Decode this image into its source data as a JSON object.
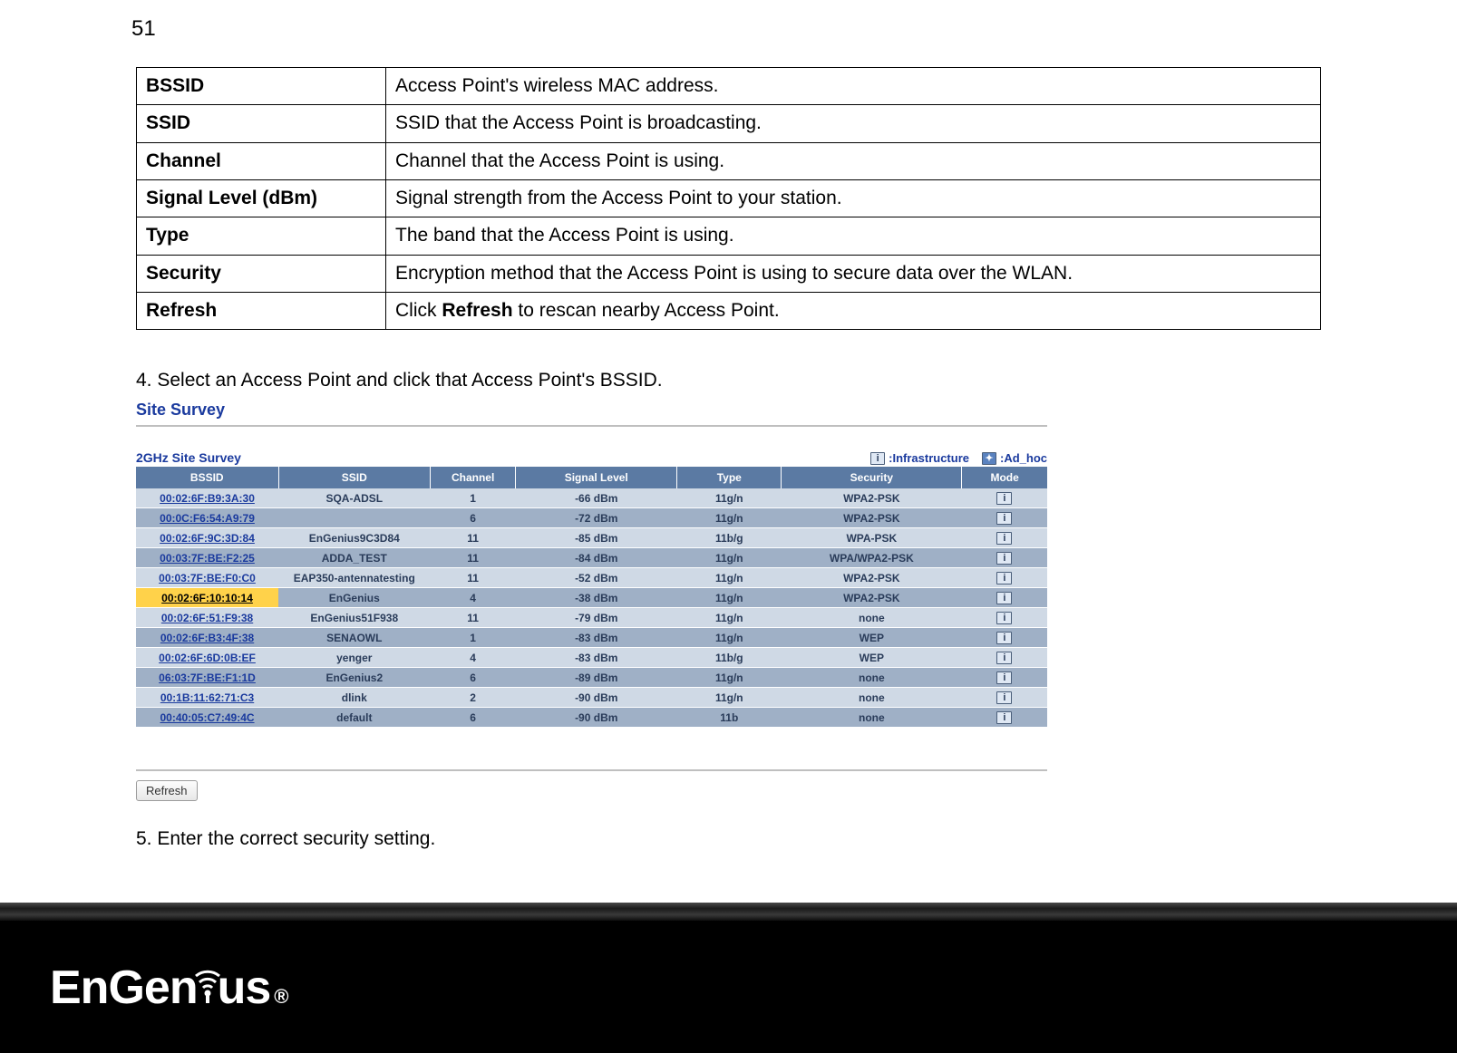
{
  "page_number": "51",
  "definitions": [
    {
      "term": "BSSID",
      "desc": "Access Point's wireless MAC address."
    },
    {
      "term": "SSID",
      "desc": "SSID that the Access Point is broadcasting."
    },
    {
      "term": "Channel",
      "desc": "Channel that the Access Point is using."
    },
    {
      "term": "Signal Level (dBm)",
      "desc": "Signal strength from the Access Point to your station."
    },
    {
      "term": "Type",
      "desc": "The band that the Access Point is using."
    },
    {
      "term": "Security",
      "desc": "Encryption method that the Access Point is using to secure data over the WLAN."
    },
    {
      "term": "Refresh",
      "desc_pre": "Click ",
      "desc_bold": "Refresh",
      "desc_post": " to rescan nearby Access Point."
    }
  ],
  "steps": {
    "step4": "4. Select an Access Point and click that Access Point's BSSID.",
    "step5": "5. Enter the correct security setting."
  },
  "survey": {
    "title": "Site Survey",
    "subtitle": "2GHz Site Survey",
    "legend_infra": ":Infrastructure",
    "legend_adhoc": ":Ad_hoc",
    "refresh_label": "Refresh",
    "columns": [
      "BSSID",
      "SSID",
      "Channel",
      "Signal Level",
      "Type",
      "Security",
      "Mode"
    ],
    "col_widths": [
      "150px",
      "160px",
      "90px",
      "170px",
      "110px",
      "190px",
      "90px"
    ],
    "header_bg": "#5b7aa3",
    "row_light_bg": "#cfd9e5",
    "row_dark_bg": "#9fb0c6",
    "selected_bg": "#ffd24a",
    "selected_index": 5,
    "rows": [
      {
        "bssid": "00:02:6F:B9:3A:30",
        "ssid": "SQA-ADSL",
        "channel": "1",
        "signal": "-66 dBm",
        "type": "11g/n",
        "security": "WPA2-PSK"
      },
      {
        "bssid": "00:0C:F6:54:A9:79",
        "ssid": "",
        "channel": "6",
        "signal": "-72 dBm",
        "type": "11g/n",
        "security": "WPA2-PSK"
      },
      {
        "bssid": "00:02:6F:9C:3D:84",
        "ssid": "EnGenius9C3D84",
        "channel": "11",
        "signal": "-85 dBm",
        "type": "11b/g",
        "security": "WPA-PSK"
      },
      {
        "bssid": "00:03:7F:BE:F2:25",
        "ssid": "ADDA_TEST",
        "channel": "11",
        "signal": "-84 dBm",
        "type": "11g/n",
        "security": "WPA/WPA2-PSK"
      },
      {
        "bssid": "00:03:7F:BE:F0:C0",
        "ssid": "EAP350-antennatesting",
        "channel": "11",
        "signal": "-52 dBm",
        "type": "11g/n",
        "security": "WPA2-PSK"
      },
      {
        "bssid": "00:02:6F:10:10:14",
        "ssid": "EnGenius",
        "channel": "4",
        "signal": "-38 dBm",
        "type": "11g/n",
        "security": "WPA2-PSK"
      },
      {
        "bssid": "00:02:6F:51:F9:38",
        "ssid": "EnGenius51F938",
        "channel": "11",
        "signal": "-79 dBm",
        "type": "11g/n",
        "security": "none"
      },
      {
        "bssid": "00:02:6F:B3:4F:38",
        "ssid": "SENAOWL",
        "channel": "1",
        "signal": "-83 dBm",
        "type": "11g/n",
        "security": "WEP"
      },
      {
        "bssid": "00:02:6F:6D:0B:EF",
        "ssid": "yenger",
        "channel": "4",
        "signal": "-83 dBm",
        "type": "11b/g",
        "security": "WEP"
      },
      {
        "bssid": "06:03:7F:BE:F1:1D",
        "ssid": "EnGenius2",
        "channel": "6",
        "signal": "-89 dBm",
        "type": "11g/n",
        "security": "none"
      },
      {
        "bssid": "00:1B:11:62:71:C3",
        "ssid": "dlink",
        "channel": "2",
        "signal": "-90 dBm",
        "type": "11g/n",
        "security": "none"
      },
      {
        "bssid": "00:40:05:C7:49:4C",
        "ssid": "default",
        "channel": "6",
        "signal": "-90 dBm",
        "type": "11b",
        "security": "none"
      }
    ]
  },
  "logo": {
    "text_left": "EnGen",
    "text_right": "us",
    "trademark": "®"
  }
}
